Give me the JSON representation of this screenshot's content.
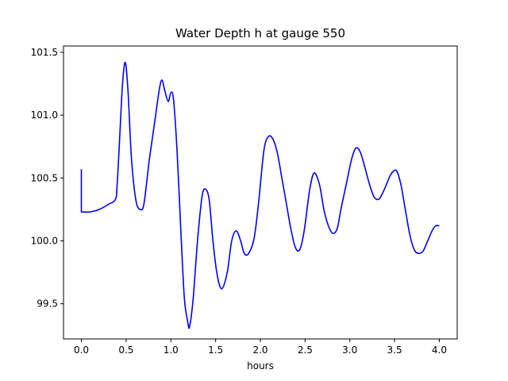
{
  "chart_data": {
    "type": "line",
    "title": "Water Depth h at gauge 550",
    "xlabel": "hours",
    "ylabel": "",
    "xlim": [
      -0.2,
      4.2
    ],
    "ylim": [
      99.22,
      101.55
    ],
    "xticks": [
      0.0,
      0.5,
      1.0,
      1.5,
      2.0,
      2.5,
      3.0,
      3.5,
      4.0
    ],
    "xtick_labels": [
      "0.0",
      "0.5",
      "1.0",
      "1.5",
      "2.0",
      "2.5",
      "3.0",
      "3.5",
      "4.0"
    ],
    "yticks": [
      99.5,
      100.0,
      100.5,
      101.0,
      101.5
    ],
    "ytick_labels": [
      "99.5",
      "100.0",
      "100.5",
      "101.0",
      "101.5"
    ],
    "grid": false,
    "series": [
      {
        "color": "#0000ff",
        "x": [
          0.0,
          0.0,
          0.1,
          0.2,
          0.3,
          0.38,
          0.4,
          0.43,
          0.46,
          0.49,
          0.52,
          0.56,
          0.61,
          0.66,
          0.7,
          0.76,
          0.82,
          0.87,
          0.9,
          0.93,
          0.97,
          1.0,
          1.03,
          1.07,
          1.11,
          1.15,
          1.19,
          1.21,
          1.25,
          1.3,
          1.35,
          1.39,
          1.43,
          1.47,
          1.52,
          1.57,
          1.63,
          1.68,
          1.73,
          1.78,
          1.82,
          1.87,
          1.93,
          1.98,
          2.04,
          2.09,
          2.14,
          2.19,
          2.24,
          2.29,
          2.34,
          2.39,
          2.44,
          2.49,
          2.55,
          2.6,
          2.66,
          2.71,
          2.76,
          2.81,
          2.86,
          2.9,
          2.96,
          3.02,
          3.07,
          3.12,
          3.17,
          3.22,
          3.27,
          3.32,
          3.36,
          3.41,
          3.46,
          3.52,
          3.57,
          3.62,
          3.67,
          3.72,
          3.77,
          3.82,
          3.87,
          3.92,
          3.96,
          4.0
        ],
        "y": [
          100.57,
          100.23,
          100.23,
          100.25,
          100.29,
          100.33,
          100.45,
          100.85,
          101.25,
          101.42,
          101.2,
          100.65,
          100.32,
          100.25,
          100.3,
          100.65,
          100.95,
          101.2,
          101.28,
          101.2,
          101.11,
          101.18,
          101.12,
          100.7,
          100.1,
          99.55,
          99.35,
          99.32,
          99.55,
          100.02,
          100.36,
          100.41,
          100.32,
          100.0,
          99.72,
          99.62,
          99.75,
          100.0,
          100.08,
          100.0,
          99.9,
          99.9,
          100.02,
          100.3,
          100.72,
          100.83,
          100.81,
          100.7,
          100.5,
          100.3,
          100.1,
          99.95,
          99.93,
          100.08,
          100.4,
          100.54,
          100.45,
          100.25,
          100.12,
          100.06,
          100.1,
          100.25,
          100.45,
          100.65,
          100.74,
          100.7,
          100.58,
          100.45,
          100.35,
          100.33,
          100.37,
          100.45,
          100.53,
          100.56,
          100.45,
          100.25,
          100.05,
          99.93,
          99.9,
          99.92,
          100.0,
          100.08,
          100.12,
          100.12
        ]
      }
    ]
  }
}
